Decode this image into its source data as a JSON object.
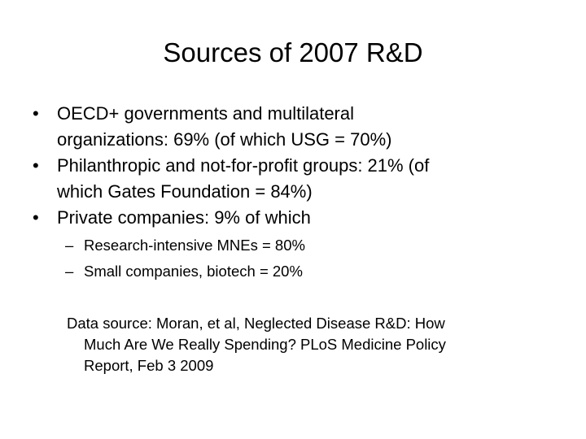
{
  "slide": {
    "title": "Sources of 2007 R&D",
    "bullets": [
      {
        "lines": [
          "OECD+ governments and multilateral",
          "organizations: 69% (of which USG = 70%)"
        ]
      },
      {
        "lines": [
          "Philanthropic and not-for-profit groups: 21% (of",
          "which Gates Foundation = 84%)"
        ]
      },
      {
        "lines": [
          "Private companies: 9% of which"
        ]
      }
    ],
    "sub_bullets": [
      "Research-intensive MNEs = 80%",
      "Small companies, biotech = 20%"
    ],
    "source": {
      "lines": [
        "Data source: Moran, et al, Neglected Disease R&D: How",
        "Much Are We Really Spending? PLoS Medicine Policy",
        "Report, Feb 3 2009"
      ]
    }
  }
}
